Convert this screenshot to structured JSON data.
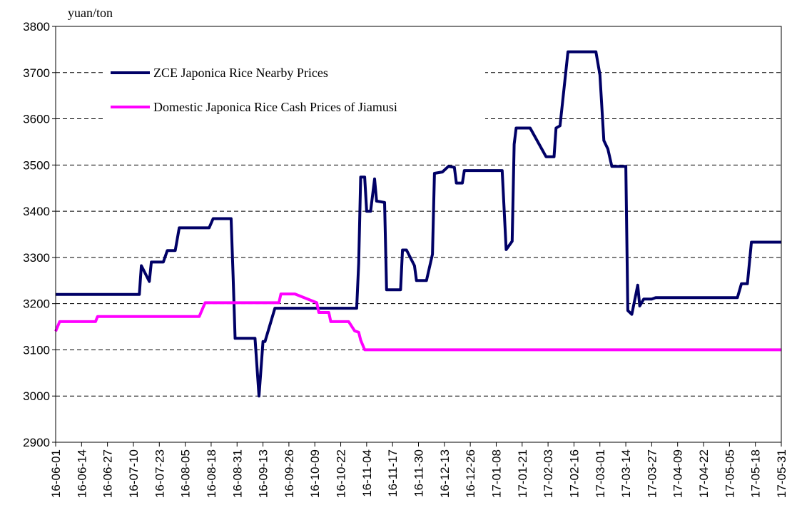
{
  "chart_data": {
    "type": "line",
    "y_label": "yuan/ton",
    "xlim": [
      "16-06-01",
      "17-05-31"
    ],
    "xticks": [
      "16-06-01",
      "16-06-14",
      "16-06-27",
      "16-07-10",
      "16-07-23",
      "16-08-05",
      "16-08-18",
      "16-08-31",
      "16-09-13",
      "16-09-26",
      "16-10-09",
      "16-10-22",
      "16-11-04",
      "16-11-17",
      "16-11-30",
      "16-12-13",
      "16-12-26",
      "17-01-08",
      "17-01-21",
      "17-02-03",
      "17-02-16",
      "17-03-01",
      "17-03-14",
      "17-03-27",
      "17-04-09",
      "17-04-22",
      "17-05-05",
      "17-05-18",
      "17-05-31"
    ],
    "ylim": [
      2900,
      3800
    ],
    "yticks": [
      2900,
      3000,
      3100,
      3200,
      3300,
      3400,
      3500,
      3600,
      3700,
      3800
    ],
    "grid": true,
    "legend": "upper left",
    "series": [
      {
        "name": "ZCE Japonica Rice Nearby Prices",
        "color": "#000066",
        "x": [
          "16-06-01",
          "16-07-13",
          "16-07-14",
          "16-07-18",
          "16-07-19",
          "16-07-25",
          "16-07-27",
          "16-07-31",
          "16-08-02",
          "16-08-17",
          "16-08-19",
          "16-08-28",
          "16-08-29",
          "16-08-30",
          "16-09-09",
          "16-09-11",
          "16-09-13",
          "16-09-14",
          "16-09-19",
          "16-10-30",
          "16-10-31",
          "16-11-01",
          "16-11-03",
          "16-11-04",
          "16-11-06",
          "16-11-08",
          "16-11-09",
          "16-11-13",
          "16-11-14",
          "16-11-21",
          "16-11-22",
          "16-11-24",
          "16-11-28",
          "16-11-29",
          "16-12-04",
          "16-12-07",
          "16-12-08",
          "16-12-12",
          "16-12-15",
          "16-12-18",
          "16-12-19",
          "16-12-22",
          "16-12-23",
          "17-01-11",
          "17-01-13",
          "17-01-16",
          "17-01-17",
          "17-01-18",
          "17-01-25",
          "17-02-02",
          "17-02-06",
          "17-02-07",
          "17-02-09",
          "17-02-13",
          "17-02-27",
          "17-03-01",
          "17-03-03",
          "17-03-05",
          "17-03-07",
          "17-03-14",
          "17-03-15",
          "17-03-17",
          "17-03-20",
          "17-03-21",
          "17-03-23",
          "17-03-27",
          "17-03-29",
          "17-05-09",
          "17-05-11",
          "17-05-14",
          "17-05-16",
          "17-05-31"
        ],
        "values": [
          3220,
          3220,
          3282,
          3248,
          3290,
          3290,
          3315,
          3315,
          3364,
          3364,
          3384,
          3384,
          3260,
          3125,
          3125,
          3000,
          3118,
          3118,
          3190,
          3190,
          3287,
          3474,
          3474,
          3400,
          3400,
          3470,
          3422,
          3419,
          3230,
          3230,
          3316,
          3316,
          3282,
          3250,
          3250,
          3307,
          3482,
          3485,
          3497,
          3495,
          3461,
          3461,
          3488,
          3488,
          3317,
          3335,
          3545,
          3580,
          3580,
          3518,
          3518,
          3580,
          3585,
          3745,
          3745,
          3695,
          3553,
          3535,
          3497,
          3497,
          3185,
          3177,
          3240,
          3195,
          3210,
          3210,
          3213,
          3213,
          3243,
          3243,
          3333,
          3333
        ]
      },
      {
        "name": "Domestic Japonica Rice Cash Prices of Jiamusi",
        "color": "#ff00ff",
        "x": [
          "16-06-01",
          "16-06-03",
          "16-06-21",
          "16-06-22",
          "16-08-12",
          "16-08-15",
          "16-09-21",
          "16-09-22",
          "16-09-29",
          "16-10-10",
          "16-10-11",
          "16-10-16",
          "16-10-17",
          "16-10-26",
          "16-10-29",
          "16-10-31",
          "16-11-01",
          "16-11-03",
          "17-05-31"
        ],
        "values": [
          3140,
          3161,
          3161,
          3172,
          3172,
          3202,
          3202,
          3221,
          3221,
          3202,
          3181,
          3181,
          3161,
          3161,
          3141,
          3138,
          3121,
          3100,
          3100
        ]
      }
    ]
  }
}
